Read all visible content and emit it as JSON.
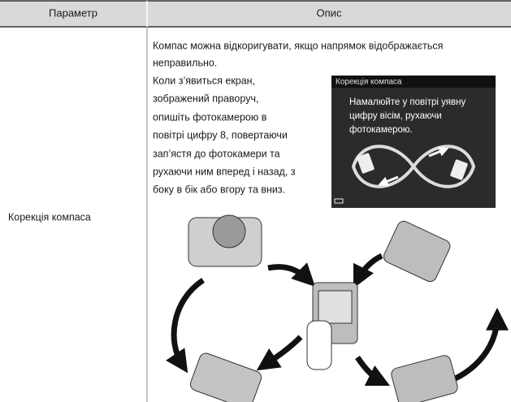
{
  "table": {
    "columns": [
      "Параметр",
      "Опис"
    ],
    "rows": [
      {
        "parameter": "Корекція компаса",
        "description": [
          "Компас можна відкоригувати, якщо напрямок відображається",
          "неправильно.",
          "Коли з’явиться екран,",
          "зображений праворуч,",
          "опишіть фотокамерою в",
          "повітрі цифру 8, повертаючи",
          "зап’ястя до фотокамери та",
          "рухаючи ним вперед і назад, з",
          "боку в бік або вгору та вниз."
        ]
      }
    ]
  },
  "screen": {
    "title": "Корекція компаса",
    "message": [
      "Намалюйте у повітрі уявну",
      "цифру вісім, рухаючи",
      "фотокамерою."
    ]
  }
}
